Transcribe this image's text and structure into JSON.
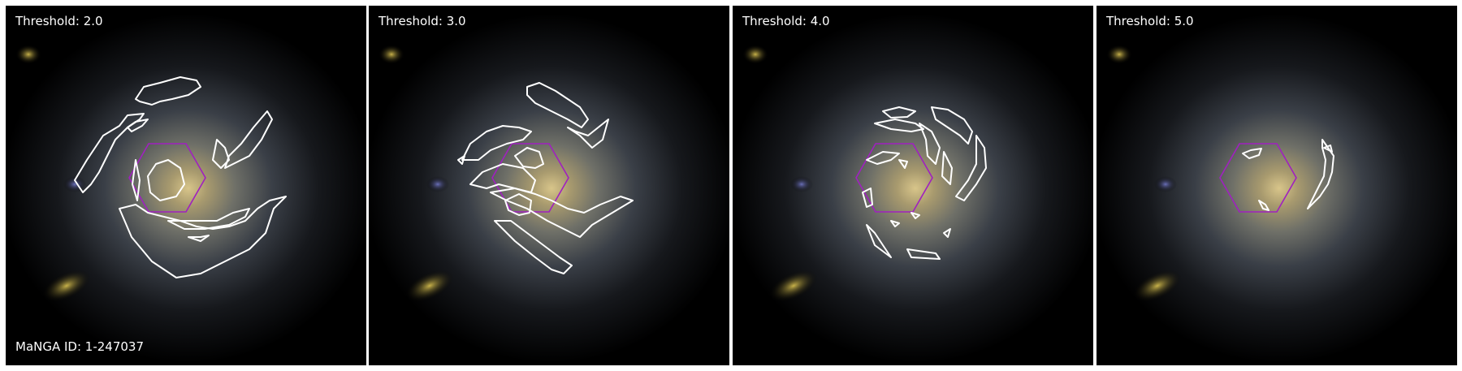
{
  "panels": [
    {
      "label": "Threshold: 2.0"
    },
    {
      "label": "Threshold: 3.0"
    },
    {
      "label": "Threshold: 4.0"
    },
    {
      "label": "Threshold: 5.0"
    }
  ],
  "manga_id": "MaNGA ID: 1-247037",
  "colors": {
    "contour": "#ffffff",
    "hexagon": "#a020c0",
    "background": "#000000"
  }
}
